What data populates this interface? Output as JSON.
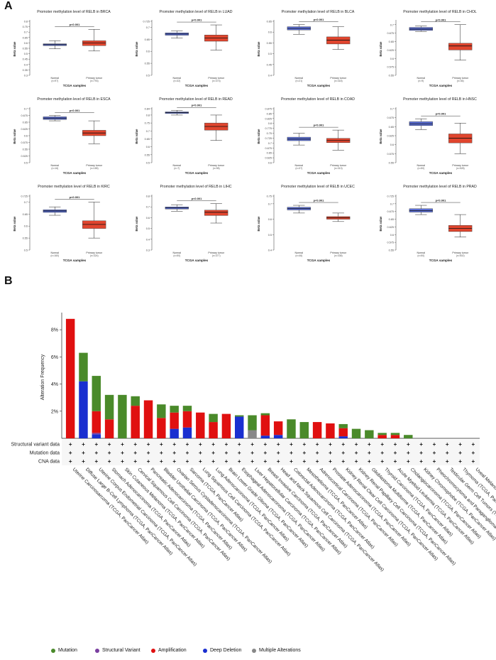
{
  "panel_a_label": "A",
  "panel_b_label": "B",
  "colors": {
    "normal_box": "#5b6fd6",
    "tumor_box": "#e0452e",
    "mutation": "#4a8a2a",
    "structural_variant": "#7a3fa0",
    "amplification": "#e01010",
    "deep_deletion": "#1a2fd0",
    "multiple_alterations": "#888888"
  },
  "chart_data": [
    {
      "type": "box",
      "cancer": "BRCA",
      "title": "Promoter methylation level of RELB in BRCA",
      "ylabel": "Beta value",
      "xlabel": "TCGA samples",
      "p_label": "p<0.001",
      "yticks": [
        "0.3",
        "0.35",
        "0.4",
        "0.45",
        "0.5",
        "0.55",
        "0.6",
        "0.65",
        "0.7",
        "0.75",
        "0.8"
      ],
      "ylim": [
        0.3,
        0.8
      ],
      "groups": [
        {
          "name": "Normal",
          "n": "(n=97)",
          "min": 0.545,
          "q1": 0.575,
          "median": 0.584,
          "q3": 0.592,
          "max": 0.62
        },
        {
          "name": "Primary tumor",
          "n": "(n=793)",
          "min": 0.525,
          "q1": 0.575,
          "median": 0.6,
          "q3": 0.62,
          "max": 0.725
        }
      ]
    },
    {
      "type": "box",
      "cancer": "LUAD",
      "title": "Promoter methylation level of RELB in LUAD",
      "ylabel": "Beta value",
      "xlabel": "TCGA samples",
      "p_label": "p<0.001",
      "yticks": [
        "0.5",
        "0.55",
        "0.6",
        "0.65",
        "0.7",
        "0.725"
      ],
      "ylim": [
        0.5,
        0.725
      ],
      "groups": [
        {
          "name": "Normal",
          "n": "(n=32)",
          "min": 0.655,
          "q1": 0.667,
          "median": 0.672,
          "q3": 0.677,
          "max": 0.685
        },
        {
          "name": "Primary tumor",
          "n": "(n=473)",
          "min": 0.605,
          "q1": 0.642,
          "median": 0.655,
          "q3": 0.668,
          "max": 0.71
        }
      ]
    },
    {
      "type": "box",
      "cancer": "BLCA",
      "title": "Promoter methylation level of RELB in BLCA",
      "ylabel": "Beta value",
      "xlabel": "TCGA samples",
      "p_label": "p<0.001",
      "yticks": [
        "0.4",
        "0.45",
        "0.5",
        "0.55",
        "0.6",
        "0.65"
      ],
      "ylim": [
        0.4,
        0.65
      ],
      "groups": [
        {
          "name": "Normal",
          "n": "(n=21)",
          "min": 0.59,
          "q1": 0.61,
          "median": 0.617,
          "q3": 0.625,
          "max": 0.635
        },
        {
          "name": "Primary tumor",
          "n": "(n=418)",
          "min": 0.52,
          "q1": 0.545,
          "median": 0.563,
          "q3": 0.578,
          "max": 0.625
        }
      ]
    },
    {
      "type": "box",
      "cancer": "CHOL",
      "title": "Promoter methylation level of RELB in CHOL",
      "ylabel": "Beta value",
      "xlabel": "TCGA samples",
      "p_label": "p<0.001",
      "yticks": [
        "0.55",
        "0.575",
        "0.6",
        "0.625",
        "0.65",
        "0.675",
        "0.7"
      ],
      "ylim": [
        0.55,
        0.71
      ],
      "groups": [
        {
          "name": "Normal",
          "n": "(n=9)",
          "min": 0.68,
          "q1": 0.683,
          "median": 0.687,
          "q3": 0.692,
          "max": 0.696
        },
        {
          "name": "Primary tumor",
          "n": "(n=36)",
          "min": 0.595,
          "q1": 0.625,
          "median": 0.637,
          "q3": 0.645,
          "max": 0.7
        }
      ]
    },
    {
      "type": "box",
      "cancer": "ESCA",
      "title": "Promoter methylation level of RELB in ESCA",
      "ylabel": "Beta value",
      "xlabel": "TCGA samples",
      "p_label": "p<0.001",
      "yticks": [
        "0.5",
        "0.525",
        "0.55",
        "0.575",
        "0.6",
        "0.625",
        "0.65",
        "0.675",
        "0.7"
      ],
      "ylim": [
        0.5,
        0.7
      ],
      "groups": [
        {
          "name": "Normal",
          "n": "(n=16)",
          "min": 0.655,
          "q1": 0.66,
          "median": 0.665,
          "q3": 0.67,
          "max": 0.675
        },
        {
          "name": "Primary tumor",
          "n": "(n=185)",
          "min": 0.57,
          "q1": 0.6,
          "median": 0.61,
          "q3": 0.62,
          "max": 0.655
        }
      ]
    },
    {
      "type": "box",
      "cancer": "READ",
      "title": "Promoter methylation level of RELB in READ",
      "ylabel": "Beta value",
      "xlabel": "TCGA samples",
      "p_label": "p<0.001",
      "yticks": [
        "0.5",
        "0.55",
        "0.6",
        "0.65",
        "0.7",
        "0.75",
        "0.8",
        "0.84"
      ],
      "ylim": [
        0.5,
        0.84
      ],
      "groups": [
        {
          "name": "Normal",
          "n": "(n=7)",
          "min": 0.8,
          "q1": 0.81,
          "median": 0.815,
          "q3": 0.82,
          "max": 0.83
        },
        {
          "name": "Primary tumor",
          "n": "(n=98)",
          "min": 0.64,
          "q1": 0.705,
          "median": 0.728,
          "q3": 0.75,
          "max": 0.8
        }
      ]
    },
    {
      "type": "box",
      "cancer": "COAD",
      "title": "Promoter methylation level of RELB in COAD",
      "ylabel": "Beta value",
      "xlabel": "TCGA samples",
      "p_label": "p<0.001",
      "yticks": [
        "0.6",
        "0.625",
        "0.65",
        "0.675",
        "0.7",
        "0.725",
        "0.75",
        "0.775",
        "0.8",
        "0.825",
        "0.85",
        "0.875"
      ],
      "ylim": [
        0.6,
        0.875
      ],
      "groups": [
        {
          "name": "Normal",
          "n": "(n=37)",
          "min": 0.69,
          "q1": 0.712,
          "median": 0.72,
          "q3": 0.73,
          "max": 0.75
        },
        {
          "name": "Primary tumor",
          "n": "(n=313)",
          "min": 0.664,
          "q1": 0.702,
          "median": 0.713,
          "q3": 0.724,
          "max": 0.766
        }
      ]
    },
    {
      "type": "box",
      "cancer": "HNSC",
      "title": "Promoter methylation level of RELB in HNSC",
      "ylabel": "Beta value",
      "xlabel": "TCGA samples",
      "p_label": "p<0.001",
      "yticks": [
        "0.55",
        "0.575",
        "0.6",
        "0.625",
        "0.65",
        "0.675",
        "0.7"
      ],
      "ylim": [
        0.55,
        0.7
      ],
      "groups": [
        {
          "name": "Normal",
          "n": "(n=50)",
          "min": 0.642,
          "q1": 0.653,
          "median": 0.658,
          "q3": 0.664,
          "max": 0.672
        },
        {
          "name": "Primary tumor",
          "n": "(n=528)",
          "min": 0.575,
          "q1": 0.605,
          "median": 0.618,
          "q3": 0.63,
          "max": 0.66
        }
      ]
    },
    {
      "type": "box",
      "cancer": "KIRC",
      "title": "Promoter methylation level of RELB in KIRC",
      "ylabel": "Beta value",
      "xlabel": "TCGA samples",
      "p_label": "p<0.001",
      "yticks": [
        "0.5",
        "0.55",
        "0.6",
        "0.65",
        "0.7",
        "0.725"
      ],
      "ylim": [
        0.5,
        0.725
      ],
      "groups": [
        {
          "name": "Normal",
          "n": "(n=160)",
          "min": 0.645,
          "q1": 0.657,
          "median": 0.663,
          "q3": 0.668,
          "max": 0.68
        },
        {
          "name": "Primary tumor",
          "n": "(n=324)",
          "min": 0.55,
          "q1": 0.59,
          "median": 0.607,
          "q3": 0.622,
          "max": 0.7
        }
      ]
    },
    {
      "type": "box",
      "cancer": "LIHC",
      "title": "Promoter methylation level of RELB in LIHC",
      "ylabel": "Beta value",
      "xlabel": "TCGA samples",
      "p_label": "p<0.001",
      "yticks": [
        "0.3",
        "0.4",
        "0.5",
        "0.6",
        "0.7",
        "0.8"
      ],
      "ylim": [
        0.3,
        0.8
      ],
      "groups": [
        {
          "name": "Normal",
          "n": "(n=50)",
          "min": 0.66,
          "q1": 0.68,
          "median": 0.69,
          "q3": 0.7,
          "max": 0.72
        },
        {
          "name": "Primary tumor",
          "n": "(n=377)",
          "min": 0.55,
          "q1": 0.62,
          "median": 0.65,
          "q3": 0.67,
          "max": 0.73
        }
      ]
    },
    {
      "type": "box",
      "cancer": "UCEC",
      "title": "Promoter methylation level of RELB in UCEC",
      "ylabel": "Beta value",
      "xlabel": "TCGA samples",
      "p_label": "p<0.001",
      "yticks": [
        "0.4",
        "0.5",
        "0.6",
        "0.7",
        "0.75"
      ],
      "ylim": [
        0.4,
        0.75
      ],
      "groups": [
        {
          "name": "Normal",
          "n": "(n=46)",
          "min": 0.64,
          "q1": 0.66,
          "median": 0.67,
          "q3": 0.678,
          "max": 0.69
        },
        {
          "name": "Primary tumor",
          "n": "(n=438)",
          "min": 0.585,
          "q1": 0.6,
          "median": 0.61,
          "q3": 0.617,
          "max": 0.64
        }
      ]
    },
    {
      "type": "box",
      "cancer": "PRAD",
      "title": "Promoter methylation level of RELB in PRAD",
      "ylabel": "Beta value",
      "xlabel": "TCGA samples",
      "p_label": "p<0.001",
      "yticks": [
        "0.55",
        "0.575",
        "0.6",
        "0.625",
        "0.65",
        "0.675",
        "0.7",
        "0.725"
      ],
      "ylim": [
        0.55,
        0.725
      ],
      "groups": [
        {
          "name": "Normal",
          "n": "(n=50)",
          "min": 0.665,
          "q1": 0.673,
          "median": 0.678,
          "q3": 0.684,
          "max": 0.695
        },
        {
          "name": "Primary tumor",
          "n": "(n=502)",
          "min": 0.592,
          "q1": 0.61,
          "median": 0.62,
          "q3": 0.63,
          "max": 0.665
        }
      ]
    },
    {
      "type": "bar",
      "stacked": true,
      "ylabel": "Alteration Frequency",
      "yticks": [
        "2%",
        "4%",
        "6%",
        "8%"
      ],
      "ylim": [
        0,
        9
      ],
      "row_labels": [
        "Structural variant data",
        "Mutation data",
        "CNA data"
      ],
      "row_marker": "+",
      "categories": [
        "Uterine Carcinosarcoma (TCGA, PanCancer Atlas)",
        "Diffuse Large B-Cell Lymphoma (TCGA, PanCancer Atlas)",
        "Uterine Corpus Endometrial Carcinoma (TCGA, PanCancer Atlas)",
        "Stomach Adenocarcinoma (TCGA, PanCancer Atlas)",
        "Skin Cutaneous Melanoma (TCGA, PanCancer Atlas)",
        "Cervical Squamous Cell Carcinoma (TCGA, PanCancer Atlas)",
        "Pancreatic Adenocarcinoma (TCGA, PanCancer Atlas)",
        "Bladder Urothelial Carcinoma (TCGA, PanCancer Atlas)",
        "Ovarian Serous Cystadenocarcinoma (TCGA, PanCancer Atlas)",
        "Sarcoma (TCGA, PanCancer Atlas)",
        "Lung Squamous Cell Carcinoma (TCGA, PanCancer Atlas)",
        "Lung Adenocarcinoma (TCGA, PanCancer Atlas)",
        "Brain Lower Grade Glioma (TCGA, PanCancer Atlas)",
        "Esophageal Adenocarcinoma (TCGA, PanCancer Atlas)",
        "Liver Hepatocellular Carcinoma (TCGA, PanCancer Atlas)",
        "Breast Invasive Carcinoma (TCGA, PanCancer Atlas)",
        "Head and Neck Squamous Cell Carcinoma (TCGA, PanCancer Atlas)",
        "Colorectal Adenocarcinoma (TCGA, PanCancer Atlas)",
        "Mesothelioma (TCGA, PanCancer Atlas)",
        "Adrenocortical Carcinoma (TCGA, PanCancer Atlas)",
        "Prostate Adenocarcinoma (TCGA, PanCancer Atlas)",
        "Kidney Renal Clear Cell Carcinoma (TCGA, PanCancer Atlas)",
        "Kidney Renal Papillary Cell Carcinoma (TCGA, PanCancer Atlas)",
        "Glioblastoma Multiforme (TCGA, PanCancer Atlas)",
        "Thyroid Carcinoma (TCGA, PanCancer Atlas)",
        "Acute Myeloid Leukemia (TCGA, PanCancer Atlas)",
        "Cholangiocarcinoma (TCGA, PanCancer Atlas)",
        "Kidney Chromophobe (TCGA, PanCancer Atlas)",
        "Pheochromocytoma and Paraganglioma (TCGA, PanCancer Atlas)",
        "Testicular Germ Cell Tumors (TCGA, PanCancer Atlas)",
        "Thymoma (TCGA, PanCancer Atlas)",
        "Uveal Melanoma (TCGA, PanCancer Atlas)"
      ],
      "series": [
        {
          "name": "Deep Deletion",
          "values": [
            0,
            4.2,
            0.3,
            0,
            0,
            0,
            0,
            0,
            0.7,
            0.8,
            0,
            0,
            0,
            1.6,
            0,
            0.2,
            0.25,
            0,
            0,
            0,
            0,
            0.15,
            0,
            0,
            0,
            0,
            0,
            0,
            0,
            0,
            0,
            0
          ]
        },
        {
          "name": "Structural Variant",
          "values": [
            0,
            0,
            0.1,
            0,
            0,
            0,
            0,
            0,
            0,
            0,
            0,
            0,
            0,
            0,
            0,
            0,
            0,
            0,
            0,
            0,
            0,
            0,
            0,
            0,
            0,
            0,
            0,
            0,
            0,
            0,
            0,
            0
          ]
        },
        {
          "name": "Amplification",
          "values": [
            8.8,
            0,
            1.6,
            1.4,
            0,
            2.4,
            2.8,
            1.5,
            1.2,
            1.2,
            1.9,
            1.2,
            1.8,
            0,
            0,
            1.5,
            1.0,
            0,
            0,
            1.2,
            1.1,
            0.6,
            0,
            0,
            0.25,
            0.25,
            0,
            0,
            0,
            0,
            0,
            0
          ]
        },
        {
          "name": "Multiple Alterations",
          "values": [
            0,
            0,
            0,
            0,
            0,
            0,
            0,
            0,
            0,
            0,
            0,
            0,
            0,
            0,
            0.6,
            0,
            0,
            0,
            0,
            0,
            0,
            0,
            0,
            0,
            0,
            0,
            0,
            0,
            0,
            0,
            0,
            0
          ]
        },
        {
          "name": "Mutation",
          "values": [
            0,
            2.1,
            2.6,
            1.8,
            3.2,
            0.7,
            0,
            1.0,
            0.5,
            0.4,
            0,
            0.6,
            0,
            0.1,
            1.1,
            0.15,
            0,
            1.4,
            1.2,
            0,
            0,
            0.3,
            0.7,
            0.6,
            0.15,
            0.15,
            0.25,
            0,
            0,
            0,
            0,
            0
          ]
        }
      ]
    }
  ],
  "legend": [
    {
      "label": "Mutation",
      "color": "#4a8a2a"
    },
    {
      "label": "Structural Variant",
      "color": "#7a3fa0"
    },
    {
      "label": "Amplification",
      "color": "#e01010"
    },
    {
      "label": "Deep Deletion",
      "color": "#1a2fd0"
    },
    {
      "label": "Multiple Alterations",
      "color": "#888888"
    }
  ]
}
